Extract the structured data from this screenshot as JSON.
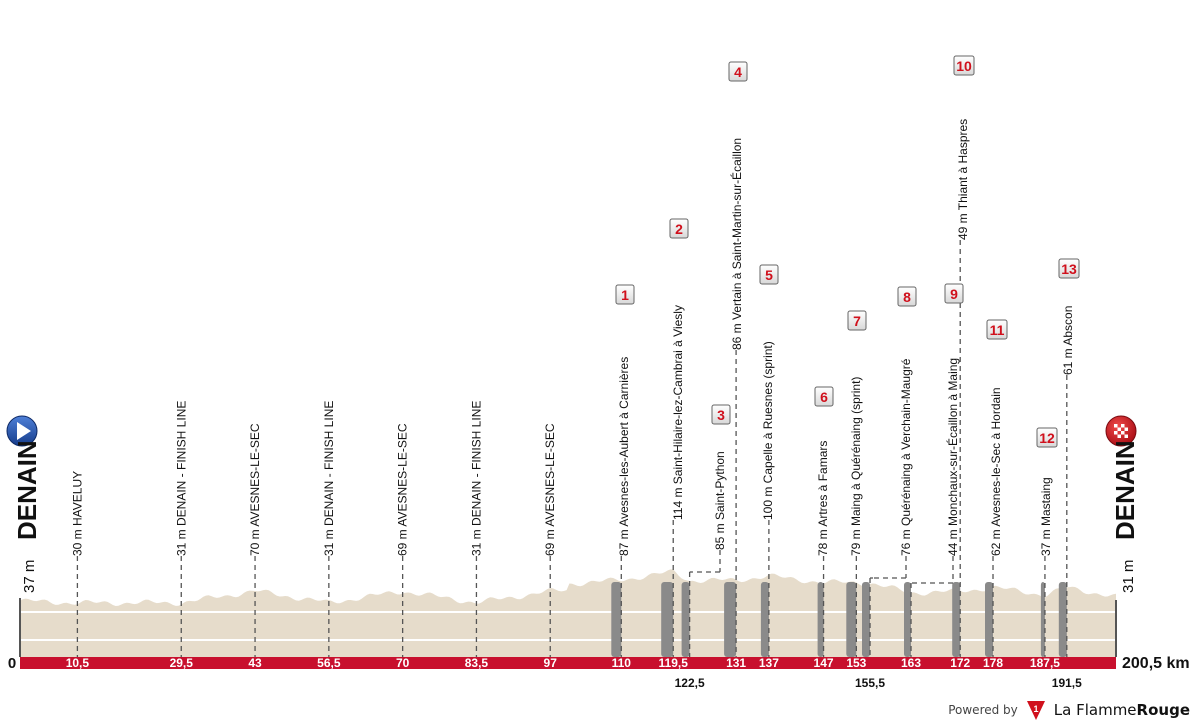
{
  "chart_data": {
    "type": "area",
    "title": "Stage profile Denain – Denain",
    "distance_unit": "km",
    "total_distance": 200.5,
    "total_distance_label": "200,5 km",
    "y_axis_zero_label": "0",
    "start": {
      "name": "DENAIN",
      "altitude_label": "37 m",
      "altitude": 37
    },
    "finish": {
      "name": "DENAIN",
      "altitude_label": "31 m",
      "altitude": 31
    },
    "waypoints": [
      {
        "km": 10.5,
        "km_label": "10,5",
        "altitude": 30,
        "label": "30 m HAVELUY"
      },
      {
        "km": 29.5,
        "km_label": "29,5",
        "altitude": 31,
        "label": "31 m DENAIN - FINISH LINE"
      },
      {
        "km": 43,
        "km_label": "43",
        "altitude": 70,
        "label": "70 m AVESNES-LE-SEC"
      },
      {
        "km": 56.5,
        "km_label": "56,5",
        "altitude": 31,
        "label": "31 m DENAIN - FINISH LINE"
      },
      {
        "km": 70,
        "km_label": "70",
        "altitude": 69,
        "label": "69 m AVESNES-LE-SEC"
      },
      {
        "km": 83.5,
        "km_label": "83,5",
        "altitude": 31,
        "label": "31 m DENAIN - FINISH LINE"
      },
      {
        "km": 97,
        "km_label": "97",
        "altitude": 69,
        "label": "69 m AVESNES-LE-SEC"
      }
    ],
    "cobbled_sectors": [
      {
        "number": "1",
        "km": 110,
        "km_label": "110",
        "altitude": 87,
        "label": "87 m Avesnes-les-Aubert à Carnières"
      },
      {
        "number": "2",
        "km": 119.5,
        "km_label": "119,5",
        "altitude": 114,
        "label": "114 m Saint-Hilaire-lez-Cambrai à Viesly"
      },
      {
        "number": "3",
        "km": 122.5,
        "km_label": "122,5",
        "altitude": 85,
        "label": "85 m Saint-Python"
      },
      {
        "number": "4",
        "km": 131,
        "km_label": "131",
        "altitude": 86,
        "label": "86 m Vertain à Saint-Martin-sur-Écaillon"
      },
      {
        "number": "5",
        "km": 137,
        "km_label": "137",
        "altitude": 100,
        "label": "100 m Capelle à Ruesnes (sprint)"
      },
      {
        "number": "6",
        "km": 147,
        "km_label": "147",
        "altitude": 78,
        "label": "78 m Artres à Famars"
      },
      {
        "number": "7",
        "km": 153,
        "km_label": "153",
        "altitude": 79,
        "label": "79 m Maing à Quérénaing (sprint)"
      },
      {
        "number": "8",
        "km": 155.5,
        "km_label": "155,5",
        "altitude": 76,
        "label": "76 m Quérénaing à Verchain-Maugré"
      },
      {
        "number": "9",
        "km": 163,
        "km_label": "163",
        "altitude": 44,
        "label": "44 m Monchaux-sur-Écaillon à Maing"
      },
      {
        "number": "10",
        "km": 172,
        "km_label": "172",
        "altitude": 49,
        "label": "49 m Thiant à Haspres"
      },
      {
        "number": "11",
        "km": 178,
        "km_label": "178",
        "altitude": 62,
        "label": "62 m Avesnes-le-Sec à Hordain"
      },
      {
        "number": "12",
        "km": 187.5,
        "km_label": "187,5",
        "altitude": 37,
        "label": "37 m Mastaing"
      },
      {
        "number": "13",
        "km": 191.5,
        "km_label": "191,5",
        "altitude": 61,
        "label": "61 m Abscon"
      }
    ],
    "xlabel": "km",
    "ylabel": "m",
    "colors": {
      "terrain": "#e6dccb",
      "axis_band": "#c8102e",
      "sector_bar": "#8a8a8a",
      "marker_text": "#d0101c",
      "start_icon": "#1f4fa3",
      "finish_icon": "#d0101c"
    }
  },
  "footer": {
    "powered_by": "Powered by",
    "brand_regular": "La Flamme",
    "brand_bold": "Rouge",
    "logo_number": "1"
  }
}
